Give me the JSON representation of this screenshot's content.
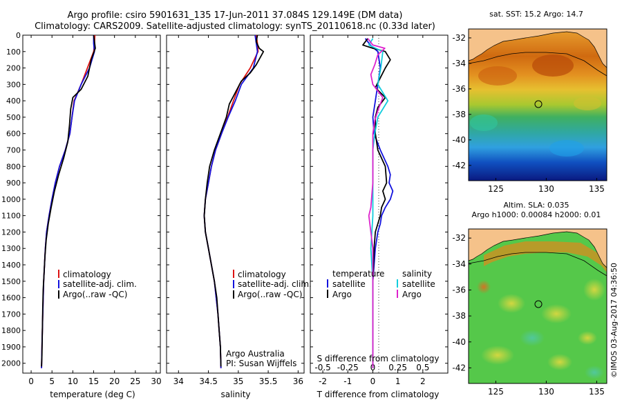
{
  "header": {
    "title_line1": "Argo profile: csiro 5901631_135 17-Jun-2011 37.084S 129.149E (DM data)",
    "title_line2": "Climatology: CARS2009. Satellite-adjusted climatology: synTS_20110618.nc (0.33d later)"
  },
  "footer": {
    "credit_line1": "Argo Australia",
    "credit_line2": "PI: Susan Wijffels",
    "stamp": "©IMOS 03-Aug-2017 04:36:50"
  },
  "legend_profiles": {
    "items": [
      {
        "label": "climatology",
        "color": "#dd1111"
      },
      {
        "label": "satellite-adj. clim.",
        "color": "#1111dd"
      },
      {
        "label": "Argo(..raw -QC)",
        "color": "#000000"
      }
    ]
  },
  "legend_diff": {
    "temperature_heading": "temperature",
    "salinity_heading": "salinity",
    "temperature_items": [
      {
        "label": "satellite",
        "color": "#1111dd"
      },
      {
        "label": "Argo",
        "color": "#000000"
      }
    ],
    "salinity_items": [
      {
        "label": "satellite",
        "color": "#11ccdd"
      },
      {
        "label": "Argo",
        "color": "#dd22cc"
      }
    ]
  },
  "maps": {
    "sst": {
      "title": "sat. SST: 15.2 Argo: 14.7",
      "x_ticks": [
        "125",
        "130",
        "135"
      ],
      "y_ticks": [
        "-32",
        "-34",
        "-36",
        "-38",
        "-40",
        "-42"
      ],
      "argo_lon": 129.149,
      "argo_lat": -37.084
    },
    "sla": {
      "title_line1": "Altim. SLA: 0.035",
      "title_line2": "Argo h1000: 0.00084 h2000: 0.01",
      "x_ticks": [
        "125",
        "130",
        "135"
      ],
      "y_ticks": [
        "-32",
        "-34",
        "-36",
        "-38",
        "-40",
        "-42"
      ],
      "argo_lon": 129.149,
      "argo_lat": -37.084
    }
  },
  "chart_data": [
    {
      "type": "line",
      "panel": "temperature",
      "xlabel": "temperature (deg C)",
      "ylabel": "",
      "x_ticks": [
        "0",
        "5",
        "10",
        "15",
        "20",
        "25",
        "30"
      ],
      "y_ticks": [
        "0",
        "100",
        "200",
        "300",
        "400",
        "500",
        "600",
        "700",
        "800",
        "900",
        "1000",
        "1100",
        "1200",
        "1300",
        "1400",
        "1500",
        "1600",
        "1700",
        "1800",
        "1900",
        "2000"
      ],
      "xlim": [
        -2,
        31
      ],
      "ylim": [
        2060,
        0
      ],
      "y_reversed": true,
      "series": [
        {
          "name": "climatology",
          "color": "#dd1111",
          "points": [
            [
              15.3,
              0
            ],
            [
              15.2,
              50
            ],
            [
              15.0,
              100
            ],
            [
              13.5,
              200
            ],
            [
              12.0,
              300
            ],
            [
              10.3,
              400
            ],
            [
              9.8,
              500
            ],
            [
              9.3,
              600
            ],
            [
              8.2,
              700
            ],
            [
              6.8,
              800
            ],
            [
              5.8,
              900
            ],
            [
              5.0,
              1000
            ],
            [
              4.3,
              1100
            ],
            [
              3.7,
              1200
            ],
            [
              3.4,
              1300
            ],
            [
              3.2,
              1400
            ],
            [
              3.0,
              1500
            ],
            [
              2.8,
              1700
            ],
            [
              2.6,
              1900
            ],
            [
              2.5,
              2030
            ]
          ]
        },
        {
          "name": "satellite-adj. clim.",
          "color": "#1111dd",
          "points": [
            [
              15.0,
              0
            ],
            [
              15.0,
              50
            ],
            [
              15.2,
              100
            ],
            [
              14.0,
              200
            ],
            [
              12.0,
              300
            ],
            [
              10.4,
              400
            ],
            [
              9.8,
              500
            ],
            [
              9.3,
              600
            ],
            [
              8.2,
              700
            ],
            [
              6.8,
              800
            ],
            [
              5.8,
              900
            ],
            [
              5.0,
              1000
            ],
            [
              4.3,
              1100
            ],
            [
              3.7,
              1200
            ],
            [
              3.4,
              1300
            ],
            [
              3.2,
              1400
            ],
            [
              3.0,
              1500
            ],
            [
              2.8,
              1700
            ],
            [
              2.6,
              1900
            ],
            [
              2.5,
              2030
            ]
          ]
        },
        {
          "name": "Argo(..raw -QC)",
          "color": "#000000",
          "points": [
            [
              15.0,
              0
            ],
            [
              15.2,
              40
            ],
            [
              15.4,
              80
            ],
            [
              14.4,
              150
            ],
            [
              13.6,
              250
            ],
            [
              12.0,
              330
            ],
            [
              10.0,
              380
            ],
            [
              9.5,
              450
            ],
            [
              9.2,
              550
            ],
            [
              8.8,
              650
            ],
            [
              7.8,
              750
            ],
            [
              6.6,
              850
            ],
            [
              5.6,
              950
            ],
            [
              4.8,
              1050
            ],
            [
              4.1,
              1150
            ],
            [
              3.6,
              1250
            ],
            [
              3.3,
              1350
            ],
            [
              3.1,
              1450
            ],
            [
              2.9,
              1550
            ],
            [
              2.8,
              1650
            ],
            [
              2.7,
              1800
            ],
            [
              2.6,
              1950
            ],
            [
              2.5,
              2020
            ]
          ]
        }
      ]
    },
    {
      "type": "line",
      "panel": "salinity",
      "xlabel": "salinity",
      "ylabel": "",
      "x_ticks": [
        "34",
        "34.5",
        "35",
        "35.5",
        "36"
      ],
      "xlim": [
        33.8,
        36.1
      ],
      "ylim": [
        2060,
        0
      ],
      "y_reversed": true,
      "series": [
        {
          "name": "climatology",
          "color": "#dd1111",
          "points": [
            [
              35.3,
              0
            ],
            [
              35.32,
              50
            ],
            [
              35.33,
              100
            ],
            [
              35.2,
              200
            ],
            [
              35.02,
              300
            ],
            [
              34.92,
              400
            ],
            [
              34.82,
              500
            ],
            [
              34.72,
              600
            ],
            [
              34.62,
              700
            ],
            [
              34.55,
              800
            ],
            [
              34.5,
              900
            ],
            [
              34.45,
              1000
            ],
            [
              34.43,
              1100
            ],
            [
              34.45,
              1200
            ],
            [
              34.5,
              1300
            ],
            [
              34.55,
              1400
            ],
            [
              34.6,
              1500
            ],
            [
              34.63,
              1600
            ],
            [
              34.66,
              1700
            ],
            [
              34.68,
              1800
            ],
            [
              34.7,
              1900
            ],
            [
              34.71,
              2030
            ]
          ]
        },
        {
          "name": "satellite-adj. clim.",
          "color": "#1111dd",
          "points": [
            [
              35.28,
              0
            ],
            [
              35.3,
              50
            ],
            [
              35.32,
              100
            ],
            [
              35.25,
              200
            ],
            [
              35.05,
              300
            ],
            [
              34.95,
              400
            ],
            [
              34.83,
              500
            ],
            [
              34.72,
              600
            ],
            [
              34.62,
              700
            ],
            [
              34.55,
              800
            ],
            [
              34.5,
              900
            ],
            [
              34.45,
              1000
            ],
            [
              34.43,
              1100
            ],
            [
              34.45,
              1200
            ],
            [
              34.5,
              1300
            ],
            [
              34.55,
              1400
            ],
            [
              34.6,
              1500
            ],
            [
              34.63,
              1600
            ],
            [
              34.66,
              1700
            ],
            [
              34.68,
              1800
            ],
            [
              34.7,
              1900
            ],
            [
              34.71,
              2030
            ]
          ]
        },
        {
          "name": "Argo(..raw -QC)",
          "color": "#000000",
          "points": [
            [
              35.32,
              0
            ],
            [
              35.3,
              40
            ],
            [
              35.35,
              80
            ],
            [
              35.42,
              100
            ],
            [
              35.3,
              180
            ],
            [
              35.2,
              230
            ],
            [
              35.05,
              280
            ],
            [
              34.95,
              350
            ],
            [
              34.85,
              420
            ],
            [
              34.8,
              500
            ],
            [
              34.7,
              600
            ],
            [
              34.6,
              700
            ],
            [
              34.52,
              800
            ],
            [
              34.48,
              900
            ],
            [
              34.45,
              1000
            ],
            [
              34.43,
              1100
            ],
            [
              34.45,
              1200
            ],
            [
              34.5,
              1300
            ],
            [
              34.55,
              1400
            ],
            [
              34.6,
              1500
            ],
            [
              34.64,
              1600
            ],
            [
              34.66,
              1700
            ],
            [
              34.68,
              1800
            ],
            [
              34.7,
              1900
            ],
            [
              34.71,
              2020
            ]
          ]
        }
      ]
    },
    {
      "type": "line",
      "panel": "difference",
      "xlabel": "T difference from climatology",
      "x2label": "S difference from climatology",
      "x_ticks": [
        "-2",
        "-1",
        "0",
        "1",
        "2"
      ],
      "x2_ticks": [
        "-0.5",
        "-0.25",
        "0",
        "0.25",
        "0.5"
      ],
      "xlim": [
        -2.5,
        3.0
      ],
      "ylim": [
        2060,
        0
      ],
      "y_reversed": true,
      "series": [
        {
          "name": "T satellite",
          "color": "#1111dd",
          "points": [
            [
              -0.3,
              20
            ],
            [
              -0.1,
              60
            ],
            [
              0.2,
              100
            ],
            [
              0.3,
              200
            ],
            [
              0.2,
              300
            ],
            [
              0.1,
              400
            ],
            [
              0.0,
              500
            ],
            [
              0.05,
              600
            ],
            [
              0.3,
              700
            ],
            [
              0.6,
              800
            ],
            [
              0.7,
              850
            ],
            [
              0.65,
              900
            ],
            [
              0.8,
              950
            ],
            [
              0.7,
              1000
            ],
            [
              0.5,
              1050
            ],
            [
              0.35,
              1100
            ],
            [
              0.3,
              1150
            ],
            [
              0.2,
              1200
            ],
            [
              0.1,
              1300
            ],
            [
              0.05,
              1400
            ],
            [
              0.0,
              1500
            ],
            [
              0.0,
              2030
            ]
          ]
        },
        {
          "name": "T Argo",
          "color": "#000000",
          "points": [
            [
              -0.2,
              20
            ],
            [
              -0.4,
              60
            ],
            [
              0.0,
              80
            ],
            [
              0.5,
              100
            ],
            [
              0.7,
              150
            ],
            [
              0.5,
              200
            ],
            [
              0.3,
              260
            ],
            [
              0.1,
              320
            ],
            [
              0.5,
              380
            ],
            [
              0.2,
              440
            ],
            [
              0.1,
              500
            ],
            [
              0.1,
              600
            ],
            [
              0.2,
              700
            ],
            [
              0.5,
              800
            ],
            [
              0.55,
              900
            ],
            [
              0.4,
              950
            ],
            [
              0.5,
              1000
            ],
            [
              0.35,
              1050
            ],
            [
              0.3,
              1100
            ],
            [
              0.2,
              1150
            ],
            [
              0.1,
              1200
            ],
            [
              0.05,
              1300
            ],
            [
              0.0,
              1500
            ],
            [
              0.0,
              2030
            ]
          ]
        },
        {
          "name": "S satellite",
          "color": "#11ccdd",
          "points": [
            [
              0.0,
              20
            ],
            [
              -0.04,
              60
            ],
            [
              0.1,
              100
            ],
            [
              0.08,
              200
            ],
            [
              0.05,
              300
            ],
            [
              0.15,
              400
            ],
            [
              0.05,
              500
            ],
            [
              0.02,
              600
            ],
            [
              0.0,
              700
            ],
            [
              0.0,
              900
            ],
            [
              0.0,
              1100
            ],
            [
              -0.02,
              1300
            ],
            [
              0.0,
              1500
            ],
            [
              0.0,
              2030
            ]
          ]
        },
        {
          "name": "S Argo",
          "color": "#dd22cc",
          "points": [
            [
              -0.05,
              20
            ],
            [
              0.0,
              60
            ],
            [
              0.12,
              80
            ],
            [
              0.05,
              120
            ],
            [
              0.02,
              180
            ],
            [
              -0.02,
              240
            ],
            [
              0.0,
              300
            ],
            [
              0.1,
              380
            ],
            [
              0.05,
              460
            ],
            [
              0.02,
              520
            ],
            [
              0.0,
              600
            ],
            [
              0.0,
              800
            ],
            [
              0.0,
              900
            ],
            [
              -0.02,
              1050
            ],
            [
              -0.04,
              1100
            ],
            [
              -0.02,
              1200
            ],
            [
              0.0,
              1300
            ],
            [
              0.0,
              1500
            ],
            [
              0.0,
              2030
            ]
          ]
        }
      ]
    }
  ]
}
